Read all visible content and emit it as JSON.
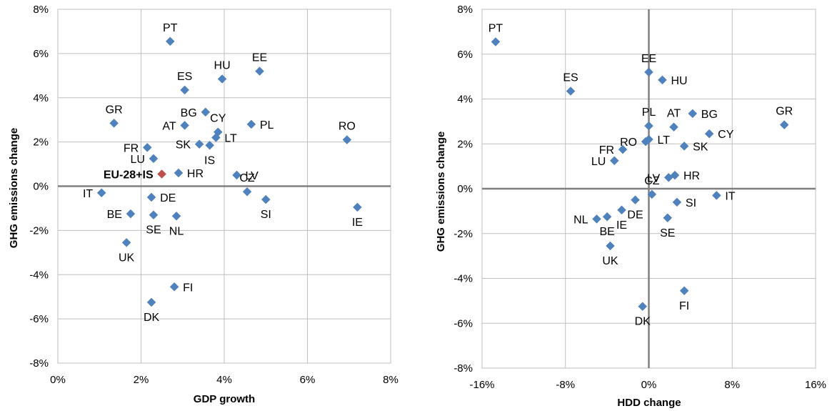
{
  "chart_data": [
    {
      "type": "scatter",
      "xlabel": "GDP growth",
      "ylabel": "GHG emissions change",
      "xlim": [
        0,
        8
      ],
      "ylim": [
        -8,
        8
      ],
      "x_ticks": [
        "0%",
        "2%",
        "4%",
        "6%",
        "8%"
      ],
      "y_ticks": [
        "-8%",
        "-6%",
        "-4%",
        "-2%",
        "0%",
        "2%",
        "4%",
        "6%",
        "8%"
      ],
      "grid": true,
      "colors": {
        "point": "#4f81bd",
        "highlight": "#c0504d",
        "axis": "#808080",
        "grid": "#bfbfbf"
      },
      "points": [
        {
          "label": "PT",
          "x": 2.7,
          "y": 6.55,
          "lp": "above"
        },
        {
          "label": "EE",
          "x": 4.85,
          "y": 5.2,
          "lp": "above"
        },
        {
          "label": "HU",
          "x": 3.95,
          "y": 4.85,
          "lp": "above"
        },
        {
          "label": "ES",
          "x": 3.05,
          "y": 4.35,
          "lp": "above"
        },
        {
          "label": "GR",
          "x": 1.35,
          "y": 2.85,
          "lp": "above"
        },
        {
          "label": "BG",
          "x": 3.55,
          "y": 3.35,
          "lp": "left"
        },
        {
          "label": "CY",
          "x": 3.85,
          "y": 2.45,
          "lp": "above"
        },
        {
          "label": "AT",
          "x": 3.05,
          "y": 2.75,
          "lp": "left"
        },
        {
          "label": "PL",
          "x": 4.65,
          "y": 2.8,
          "lp": "right"
        },
        {
          "label": "LT",
          "x": 3.8,
          "y": 2.2,
          "lp": "right"
        },
        {
          "label": "RO",
          "x": 6.95,
          "y": 2.1,
          "lp": "above"
        },
        {
          "label": "SK",
          "x": 3.4,
          "y": 1.9,
          "lp": "left"
        },
        {
          "label": "IS",
          "x": 3.65,
          "y": 1.85,
          "lp": "below"
        },
        {
          "label": "FR",
          "x": 2.15,
          "y": 1.75,
          "lp": "left"
        },
        {
          "label": "LU",
          "x": 2.3,
          "y": 1.25,
          "lp": "left"
        },
        {
          "label": "HR",
          "x": 2.9,
          "y": 0.6,
          "lp": "right"
        },
        {
          "label": "EU-28+IS",
          "x": 2.5,
          "y": 0.55,
          "lp": "left",
          "highlight": true
        },
        {
          "label": "LV",
          "x": 4.3,
          "y": 0.5,
          "lp": "right"
        },
        {
          "label": "CZ",
          "x": 4.55,
          "y": -0.25,
          "lp": "above"
        },
        {
          "label": "SI",
          "x": 5.0,
          "y": -0.6,
          "lp": "below"
        },
        {
          "label": "IE",
          "x": 7.2,
          "y": -0.95,
          "lp": "below"
        },
        {
          "label": "IT",
          "x": 1.05,
          "y": -0.3,
          "lp": "left"
        },
        {
          "label": "DE",
          "x": 2.25,
          "y": -0.5,
          "lp": "right"
        },
        {
          "label": "BE",
          "x": 1.75,
          "y": -1.25,
          "lp": "left"
        },
        {
          "label": "SE",
          "x": 2.3,
          "y": -1.3,
          "lp": "below"
        },
        {
          "label": "NL",
          "x": 2.85,
          "y": -1.35,
          "lp": "below"
        },
        {
          "label": "UK",
          "x": 1.65,
          "y": -2.55,
          "lp": "below"
        },
        {
          "label": "FI",
          "x": 2.8,
          "y": -4.55,
          "lp": "right"
        },
        {
          "label": "DK",
          "x": 2.25,
          "y": -5.25,
          "lp": "below"
        }
      ]
    },
    {
      "type": "scatter",
      "xlabel": "HDD change",
      "ylabel": "GHG emissions change",
      "xlim": [
        -16,
        16
      ],
      "ylim": [
        -8,
        8
      ],
      "x_ticks": [
        "-16%",
        "-8%",
        "0%",
        "8%",
        "16%"
      ],
      "y_ticks": [
        "-8%",
        "-6%",
        "-4%",
        "-2%",
        "0%",
        "2%",
        "4%",
        "6%",
        "8%"
      ],
      "grid": true,
      "colors": {
        "point": "#4f81bd",
        "axis": "#808080",
        "grid": "#bfbfbf"
      },
      "points": [
        {
          "label": "PT",
          "x": -14.7,
          "y": 6.55,
          "lp": "above"
        },
        {
          "label": "ES",
          "x": -7.5,
          "y": 4.35,
          "lp": "above"
        },
        {
          "label": "EE",
          "x": 0.0,
          "y": 5.2,
          "lp": "above"
        },
        {
          "label": "HU",
          "x": 1.3,
          "y": 4.85,
          "lp": "right"
        },
        {
          "label": "GR",
          "x": 13.0,
          "y": 2.85,
          "lp": "above"
        },
        {
          "label": "BG",
          "x": 4.2,
          "y": 3.35,
          "lp": "right"
        },
        {
          "label": "PL",
          "x": 0.0,
          "y": 2.8,
          "lp": "above"
        },
        {
          "label": "AT",
          "x": 2.4,
          "y": 2.75,
          "lp": "above"
        },
        {
          "label": "CY",
          "x": 5.8,
          "y": 2.45,
          "lp": "right"
        },
        {
          "label": "LT",
          "x": 0.0,
          "y": 2.2,
          "lp": "right"
        },
        {
          "label": "RO",
          "x": -0.3,
          "y": 2.1,
          "lp": "left"
        },
        {
          "label": "SK",
          "x": 3.4,
          "y": 1.9,
          "lp": "right"
        },
        {
          "label": "FR",
          "x": -2.5,
          "y": 1.75,
          "lp": "left"
        },
        {
          "label": "LU",
          "x": -3.3,
          "y": 1.25,
          "lp": "left"
        },
        {
          "label": "HR",
          "x": 2.5,
          "y": 0.6,
          "lp": "right"
        },
        {
          "label": "LV",
          "x": 1.9,
          "y": 0.5,
          "lp": "left"
        },
        {
          "label": "CZ",
          "x": 0.3,
          "y": -0.25,
          "lp": "above"
        },
        {
          "label": "IT",
          "x": 6.5,
          "y": -0.3,
          "lp": "right"
        },
        {
          "label": "SI",
          "x": 2.7,
          "y": -0.6,
          "lp": "right"
        },
        {
          "label": "DE",
          "x": -1.3,
          "y": -0.5,
          "lp": "below"
        },
        {
          "label": "IE",
          "x": -2.6,
          "y": -0.95,
          "lp": "below"
        },
        {
          "label": "BE",
          "x": -4.0,
          "y": -1.25,
          "lp": "below"
        },
        {
          "label": "NL",
          "x": -5.0,
          "y": -1.35,
          "lp": "left"
        },
        {
          "label": "SE",
          "x": 1.8,
          "y": -1.3,
          "lp": "below"
        },
        {
          "label": "UK",
          "x": -3.7,
          "y": -2.55,
          "lp": "below"
        },
        {
          "label": "FI",
          "x": 3.4,
          "y": -4.55,
          "lp": "below"
        },
        {
          "label": "DK",
          "x": -0.6,
          "y": -5.25,
          "lp": "below"
        }
      ]
    }
  ]
}
